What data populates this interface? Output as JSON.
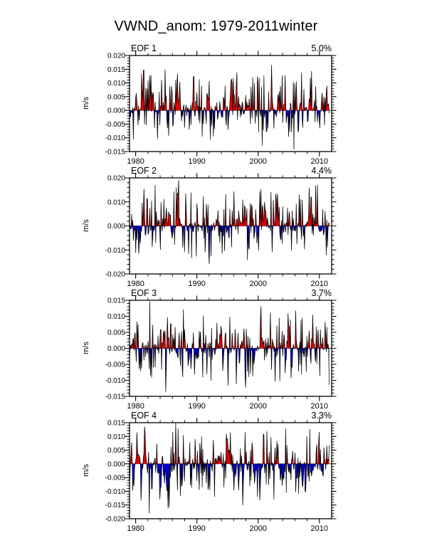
{
  "title": "VWND_anom: 1979-2011winter",
  "chart_data": {
    "type": "area",
    "description": "Four stacked EOF principal-component time series of winter VWND anomalies; high-frequency series filled red above zero and blue below zero with black trace",
    "xlabel": "",
    "ylabel": "m/s",
    "xlim": [
      1979,
      2012
    ],
    "x_ticks": [
      1980,
      1990,
      2000,
      2010
    ],
    "x_tick_labels": [
      "1980",
      "1990",
      "2000",
      "2010"
    ],
    "x_minor_step": 2,
    "grid": false,
    "legend": "none",
    "colors": {
      "positive_fill": "#dd0000",
      "negative_fill": "#0000cc",
      "line": "#000000",
      "zero_line": "#444444",
      "axis": "#000000"
    },
    "panels": [
      {
        "label": "EOF 1",
        "variance": "5.0%",
        "ylim": [
          -0.015,
          0.02
        ],
        "y_major_step": 0.005,
        "y_minor_step": 0.001,
        "y_tick_values": [
          0.02,
          0.015,
          0.01,
          0.005,
          0.0,
          -0.005,
          -0.01,
          -0.015
        ],
        "y_tick_labels": [
          "0.020",
          "0.015",
          "0.010",
          "0.005",
          "0.000",
          "-0.005",
          "-0.010",
          "-0.015"
        ],
        "pos_peak": {
          "year": 2002.2,
          "value": 0.0165
        },
        "neg_peak": {
          "year": 2005.8,
          "value": -0.0142
        },
        "spike_amp": 0.013,
        "base_amp": 0.0032,
        "seed": 7
      },
      {
        "label": "EOF 2",
        "variance": "4.4%",
        "ylim": [
          -0.02,
          0.02
        ],
        "y_major_step": 0.01,
        "y_minor_step": 0.002,
        "y_tick_values": [
          0.02,
          0.01,
          0.0,
          -0.01,
          -0.02
        ],
        "y_tick_labels": [
          "0.020",
          "0.010",
          "0.000",
          "-0.010",
          "-0.020"
        ],
        "pos_peak": {
          "year": 1987.0,
          "value": 0.019
        },
        "neg_peak": {
          "year": 1992.0,
          "value": -0.0158
        },
        "spike_amp": 0.014,
        "base_amp": 0.0032,
        "seed": 13
      },
      {
        "label": "EOF 3",
        "variance": "3.7%",
        "ylim": [
          -0.015,
          0.015
        ],
        "y_major_step": 0.005,
        "y_minor_step": 0.001,
        "y_tick_values": [
          0.015,
          0.01,
          0.005,
          0.0,
          -0.005,
          -0.01,
          -0.015
        ],
        "y_tick_labels": [
          "0.015",
          "0.010",
          "0.005",
          "0.000",
          "-0.005",
          "-0.010",
          "-0.015"
        ],
        "pos_peak": {
          "year": 1982.3,
          "value": 0.0146
        },
        "neg_peak": {
          "year": 1984.9,
          "value": -0.0136
        },
        "spike_amp": 0.011,
        "base_amp": 0.003,
        "seed": 21
      },
      {
        "label": "EOF 4",
        "variance": "3.3%",
        "ylim": [
          -0.02,
          0.015
        ],
        "y_major_step": 0.005,
        "y_minor_step": 0.001,
        "y_tick_values": [
          0.015,
          0.01,
          0.005,
          0.0,
          -0.005,
          -0.01,
          -0.015,
          -0.02
        ],
        "y_tick_labels": [
          "0.015",
          "0.010",
          "0.005",
          "0.000",
          "-0.005",
          "-0.010",
          "-0.015",
          "-0.020"
        ],
        "pos_peak": {
          "year": 1986.5,
          "value": 0.015
        },
        "neg_peak": {
          "year": 1982.2,
          "value": -0.018
        },
        "spike_amp": 0.011,
        "base_amp": 0.003,
        "seed": 5
      }
    ]
  }
}
